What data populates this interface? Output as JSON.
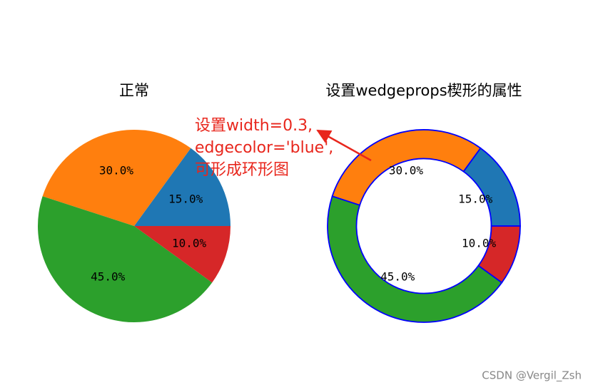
{
  "chart_data": [
    {
      "type": "pie",
      "title": "正常",
      "values": [
        15,
        30,
        45,
        10
      ],
      "value_labels": [
        "15.0%",
        "30.0%",
        "45.0%",
        "10.0%"
      ],
      "colors": [
        "#1f77b4",
        "#ff7f0e",
        "#2ca02c",
        "#d62728"
      ]
    },
    {
      "type": "donut",
      "title": "设置wedgeprops楔形的属性",
      "values": [
        15,
        30,
        45,
        10
      ],
      "value_labels": [
        "15.0%",
        "30.0%",
        "45.0%",
        "10.0%"
      ],
      "colors": [
        "#1f77b4",
        "#ff7f0e",
        "#2ca02c",
        "#d62728"
      ],
      "wedge_width": 0.3,
      "edgecolor": "blue",
      "annotation": [
        "设置width=0.3,",
        "edgecolor='blue',",
        "可形成环形图"
      ]
    }
  ],
  "watermark": "CSDN @Vergil_Zsh"
}
